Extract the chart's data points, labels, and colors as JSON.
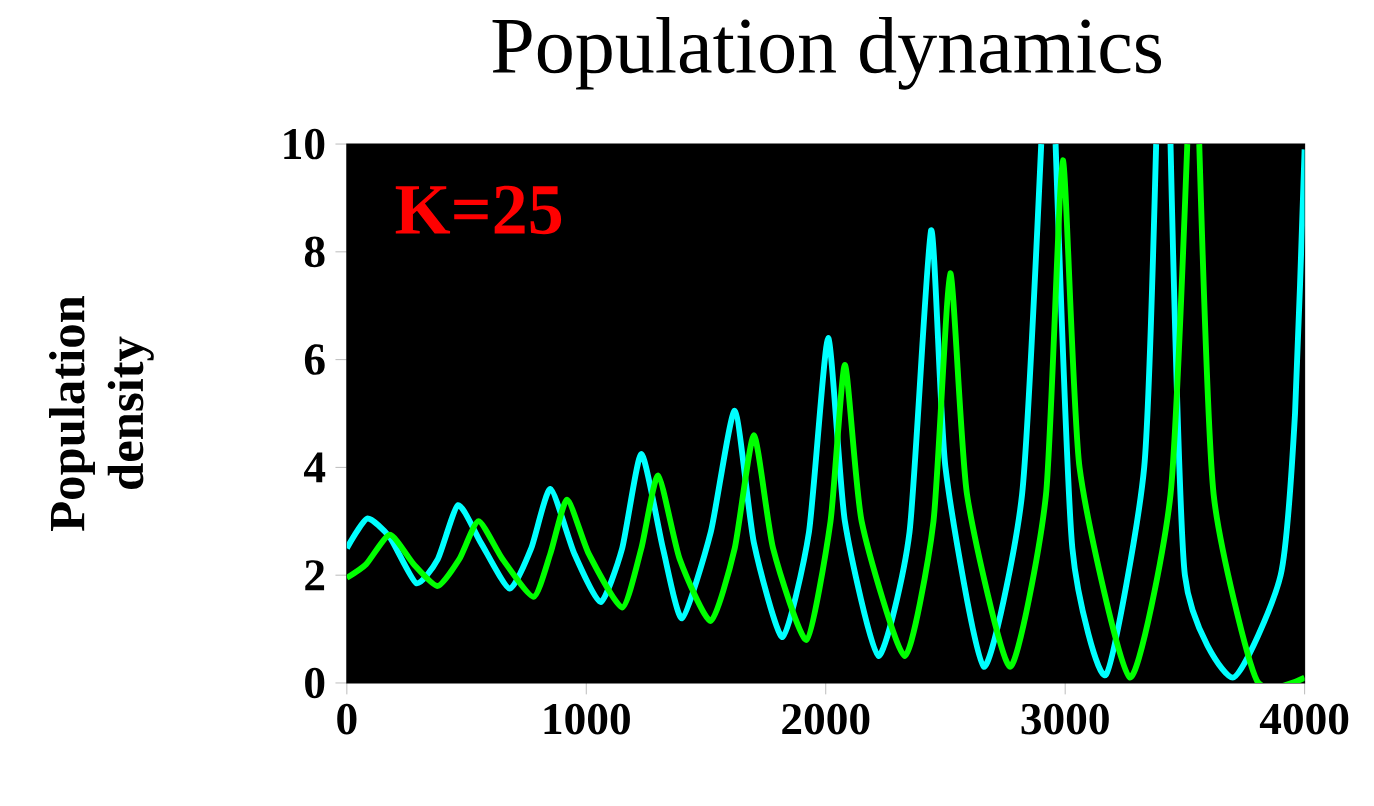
{
  "chart_data": {
    "type": "line",
    "title": "Population dynamics",
    "ylabel": "Population density",
    "annotations": [
      "K=25"
    ],
    "xlim": [
      0,
      4000
    ],
    "xticks": [
      0,
      1000,
      2000,
      3000,
      4000
    ],
    "ylim": [
      0,
      10
    ],
    "yticks": [
      0,
      2,
      4,
      6,
      8,
      10
    ],
    "grid": false,
    "series": [
      {
        "color": "#00ffff",
        "x": [
          0,
          85,
          180,
          290,
          380,
          465,
          560,
          680,
          770,
          850,
          950,
          1060,
          1150,
          1230,
          1320,
          1400,
          1520,
          1620,
          1700,
          1820,
          1930,
          2010,
          2080,
          2220,
          2350,
          2440,
          2500,
          2660,
          2820,
          2900,
          2930,
          2960,
          3030,
          3170,
          3330,
          3380,
          3410,
          3440,
          3500,
          3700,
          3900,
          3960,
          4000
        ],
        "values": [
          2.5,
          3.05,
          2.7,
          1.85,
          2.3,
          3.3,
          2.6,
          1.75,
          2.5,
          3.6,
          2.4,
          1.5,
          2.5,
          4.25,
          2.5,
          1.2,
          2.8,
          5.05,
          2.6,
          0.85,
          2.8,
          6.4,
          3.0,
          0.5,
          2.8,
          8.4,
          4.0,
          0.3,
          3.5,
          10,
          null,
          10,
          2.5,
          0.15,
          4,
          10,
          null,
          10,
          2,
          0.1,
          2,
          5,
          9.9
        ]
      },
      {
        "color": "#00ff00",
        "x": [
          0,
          80,
          180,
          280,
          380,
          470,
          550,
          650,
          780,
          850,
          920,
          1010,
          1150,
          1230,
          1300,
          1390,
          1520,
          1620,
          1700,
          1780,
          1920,
          2020,
          2080,
          2150,
          2330,
          2450,
          2520,
          2590,
          2770,
          2920,
          2990,
          3060,
          3270,
          3440,
          3510,
          3535,
          3560,
          3620,
          3800,
          4000
        ],
        "values": [
          1.95,
          2.2,
          2.75,
          2.2,
          1.8,
          2.3,
          3.0,
          2.3,
          1.6,
          2.4,
          3.4,
          2.4,
          1.4,
          2.5,
          3.85,
          2.3,
          1.15,
          2.5,
          4.6,
          2.5,
          0.8,
          3,
          5.9,
          3,
          0.5,
          3,
          7.6,
          3.5,
          0.3,
          3.5,
          9.7,
          4,
          0.1,
          3.5,
          10,
          null,
          10,
          3.5,
          0.05,
          0.1
        ]
      }
    ]
  }
}
